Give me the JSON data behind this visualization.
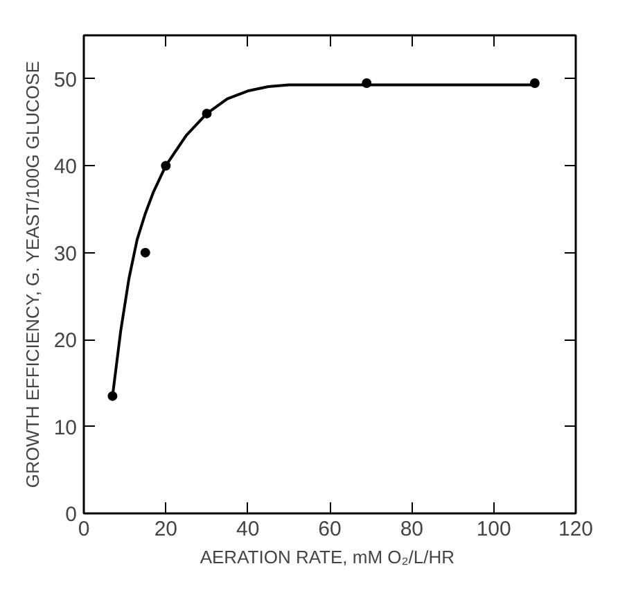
{
  "chart_data": {
    "type": "scatter",
    "xlabel": "AERATION RATE,  mM O₂/L/HR",
    "ylabel": "GROWTH EFFICIENCY, G. YEAST/100G GLUCOSE",
    "xlim": [
      0,
      120
    ],
    "ylim": [
      0,
      55
    ],
    "xticks": [
      0,
      20,
      40,
      60,
      80,
      100,
      120
    ],
    "yticks": [
      0,
      10,
      20,
      30,
      40,
      50
    ],
    "grid": false,
    "marker": "circle",
    "series": [
      {
        "color": "#000000",
        "x": [
          7,
          15,
          20,
          30,
          69,
          110
        ],
        "values": [
          13.5,
          30,
          40,
          46,
          49.5,
          49.5
        ]
      },
      {
        "type": "line",
        "color": "#000000",
        "line_style": "solid",
        "marker": "none",
        "x": [
          7,
          9,
          11,
          13,
          15,
          17,
          20,
          25,
          30,
          35,
          40,
          45,
          50,
          60,
          70,
          90,
          110
        ],
        "values": [
          13.5,
          21,
          27,
          31.5,
          34.5,
          37,
          40,
          43.5,
          46,
          47.7,
          48.6,
          49.1,
          49.3,
          49.3,
          49.3,
          49.3,
          49.3
        ]
      }
    ]
  }
}
